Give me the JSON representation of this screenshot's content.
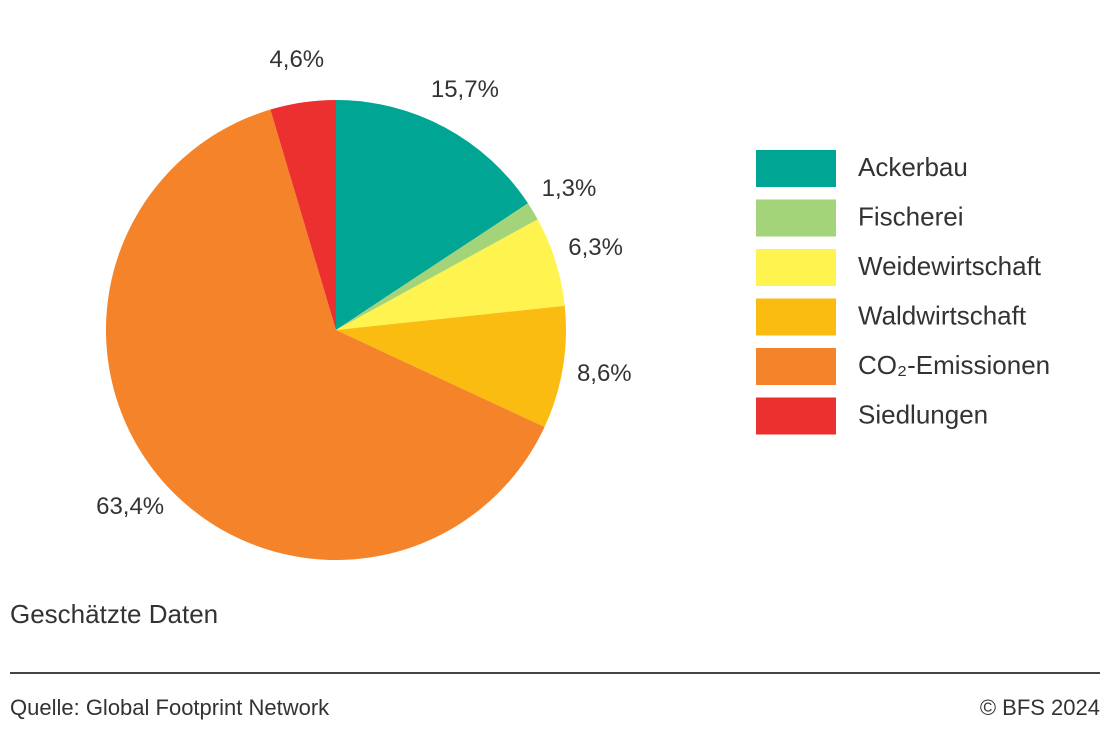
{
  "chart_data": {
    "type": "pie",
    "categories": [
      "Ackerbau",
      "Fischerei",
      "Weidewirtschaft",
      "Waldwirtschaft",
      "CO₂-Emissionen",
      "Siedlungen"
    ],
    "values": [
      15.7,
      1.3,
      6.3,
      8.6,
      63.4,
      4.6
    ],
    "value_labels": [
      "15,7%",
      "1,3%",
      "6,3%",
      "8,6%",
      "63,4%",
      "4,6%"
    ],
    "colors": [
      "#00a693",
      "#a3d47a",
      "#fff350",
      "#fbbc12",
      "#f4832a",
      "#ec3030"
    ],
    "note": "Geschätzte Daten",
    "source": "Quelle: Global Footprint Network",
    "copyright": "© BFS 2024"
  }
}
